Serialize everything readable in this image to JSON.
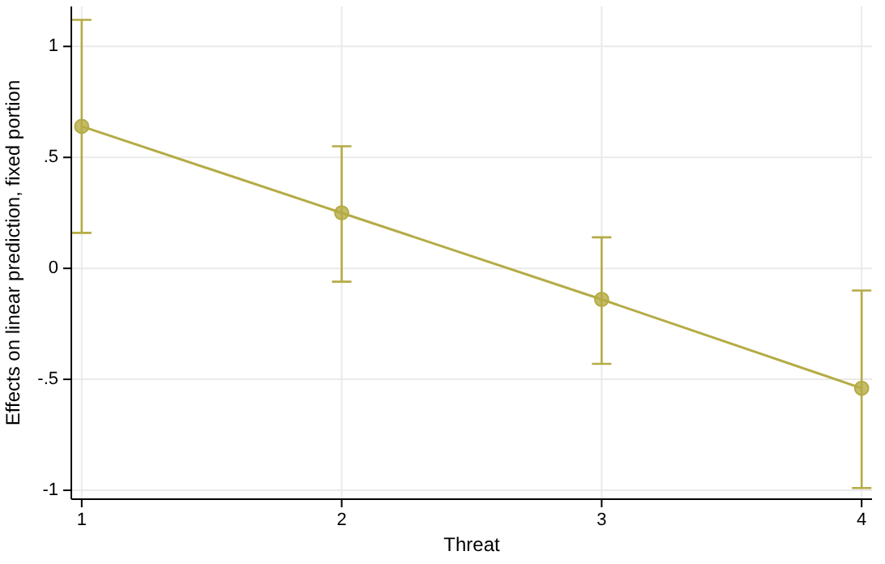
{
  "chart_data": {
    "type": "line",
    "xlabel": "Threat",
    "ylabel": "Effects on linear prediction, fixed portion",
    "x": [
      1,
      2,
      3,
      4
    ],
    "series": [
      {
        "color": "#b5ab45",
        "values": [
          0.64,
          0.25,
          -0.14,
          -0.54
        ],
        "errors": [
          [
            0.16,
            1.12
          ],
          [
            -0.06,
            0.55
          ],
          [
            -0.43,
            0.14
          ],
          [
            -0.99,
            -0.1
          ]
        ]
      }
    ],
    "xlim": [
      0.96,
      4.04
    ],
    "xticks": [
      1,
      2,
      3,
      4
    ],
    "ylim": [
      -1.04,
      1.18
    ],
    "yticks": [
      {
        "value": -1,
        "label": "-1"
      },
      {
        "value": -0.5,
        "label": "-.5"
      },
      0,
      {
        "value": 0.5,
        "label": ".5"
      },
      1
    ],
    "grid": true,
    "marker": "circle",
    "line_style": "solid"
  }
}
